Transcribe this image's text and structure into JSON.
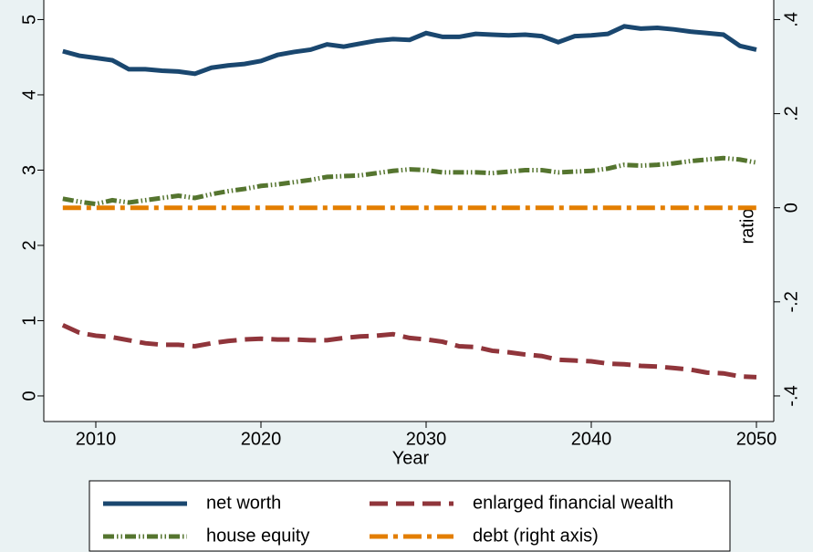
{
  "chart_data": {
    "type": "line",
    "x_label": "Year",
    "y2_label": "ratio",
    "x": [
      2008,
      2009,
      2010,
      2011,
      2012,
      2013,
      2014,
      2015,
      2016,
      2017,
      2018,
      2019,
      2020,
      2021,
      2022,
      2023,
      2024,
      2025,
      2026,
      2027,
      2028,
      2029,
      2030,
      2031,
      2032,
      2033,
      2034,
      2035,
      2036,
      2037,
      2038,
      2039,
      2040,
      2041,
      2042,
      2043,
      2044,
      2045,
      2046,
      2047,
      2048,
      2049,
      2050
    ],
    "xlim": [
      2006.85,
      2051.05
    ],
    "xticks": [
      2010,
      2020,
      2030,
      2040,
      2050
    ],
    "ylim": [
      -0.34,
      5.26
    ],
    "yticks": [
      0,
      1,
      2,
      3,
      4,
      5
    ],
    "y2lim": [
      -0.4544,
      0.4416
    ],
    "y2ticks": [
      {
        "value": -0.4,
        "label": "-.4"
      },
      {
        "value": -0.2,
        "label": "-.2"
      },
      0,
      {
        "value": 0.2,
        "label": ".2"
      },
      {
        "value": 0.4,
        "label": ".4"
      }
    ],
    "grid": false,
    "legend": "bottom",
    "series": [
      {
        "name": "net worth",
        "color": "#1a476f",
        "style": "solid",
        "values": [
          4.58,
          4.52,
          4.49,
          4.46,
          4.34,
          4.34,
          4.32,
          4.31,
          4.28,
          4.36,
          4.39,
          4.41,
          4.45,
          4.53,
          4.57,
          4.6,
          4.67,
          4.64,
          4.68,
          4.72,
          4.74,
          4.73,
          4.82,
          4.77,
          4.77,
          4.81,
          4.8,
          4.79,
          4.8,
          4.78,
          4.7,
          4.78,
          4.79,
          4.81,
          4.91,
          4.88,
          4.89,
          4.87,
          4.84,
          4.82,
          4.8,
          4.65,
          4.6
        ]
      },
      {
        "name": "enlarged financial wealth",
        "color": "#90353b",
        "style": "long-dash",
        "values": [
          0.94,
          0.84,
          0.8,
          0.78,
          0.74,
          0.7,
          0.68,
          0.68,
          0.66,
          0.7,
          0.73,
          0.75,
          0.76,
          0.75,
          0.75,
          0.74,
          0.74,
          0.77,
          0.79,
          0.8,
          0.82,
          0.77,
          0.75,
          0.72,
          0.66,
          0.65,
          0.6,
          0.58,
          0.55,
          0.53,
          0.48,
          0.47,
          0.46,
          0.43,
          0.42,
          0.4,
          0.39,
          0.37,
          0.35,
          0.31,
          0.3,
          0.26,
          0.25
        ]
      },
      {
        "name": "house equity",
        "color": "#55752f",
        "style": "dash-dot-dot",
        "values": [
          2.62,
          2.58,
          2.55,
          2.6,
          2.57,
          2.6,
          2.63,
          2.66,
          2.63,
          2.68,
          2.72,
          2.75,
          2.79,
          2.81,
          2.84,
          2.87,
          2.91,
          2.92,
          2.93,
          2.96,
          2.99,
          3.01,
          3.0,
          2.97,
          2.97,
          2.97,
          2.96,
          2.98,
          3.0,
          3.0,
          2.97,
          2.98,
          2.99,
          3.02,
          3.07,
          3.06,
          3.07,
          3.09,
          3.12,
          3.14,
          3.16,
          3.14,
          3.1
        ]
      },
      {
        "name": "debt (right axis)",
        "color": "#e37e00",
        "style": "dash-dot",
        "axis": "y2",
        "values": [
          0,
          0,
          0,
          0,
          0,
          0,
          0,
          0,
          0,
          0,
          0,
          0,
          0,
          0,
          0,
          0,
          0,
          0,
          0,
          0,
          0,
          0,
          0,
          0,
          0,
          0,
          0,
          0,
          0,
          0,
          0,
          0,
          0,
          0,
          0,
          0,
          0,
          0,
          0,
          0,
          0,
          0,
          0
        ]
      }
    ]
  }
}
